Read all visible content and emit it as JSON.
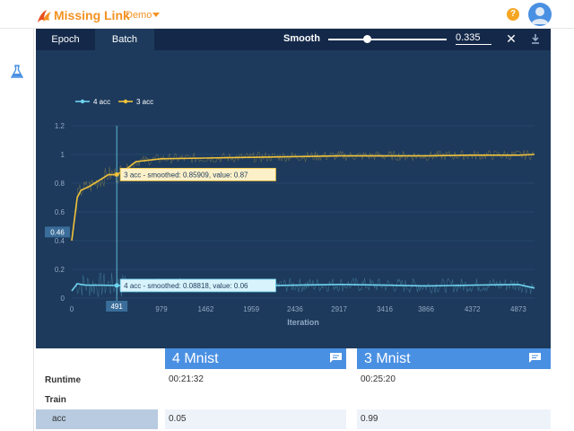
{
  "app": {
    "brand": "Missing Link",
    "project": "Demo",
    "help_glyph": "?"
  },
  "colors": {
    "brand_orange": "#f29222",
    "panel_bg": "#1d3a5c",
    "tab_bar_bg": "#14294a",
    "accent_blue": "#4a90e2",
    "series_4acc": "#6fd3ee",
    "series_3acc": "#f0c23a"
  },
  "icons": {
    "logo": "missing-link-logo",
    "flask": "flask-icon",
    "help": "help-icon",
    "avatar": "user-avatar-icon",
    "close": "close-icon",
    "download": "download-icon",
    "chat": "comment-icon"
  },
  "chart_panel": {
    "tabs": [
      {
        "label": "Epoch",
        "active": false
      },
      {
        "label": "Batch",
        "active": true
      }
    ],
    "smooth_label": "Smooth",
    "smooth_value": "0.335",
    "smooth_fraction": 0.335,
    "close_glyph": "✕"
  },
  "chart_data": {
    "type": "line",
    "xlabel": "Iteration",
    "ylabel": "",
    "ylim": [
      0,
      1.2
    ],
    "xlim": [
      0,
      5050
    ],
    "x_ticks": [
      "0",
      "491",
      "979",
      "1462",
      "1959",
      "2436",
      "2917",
      "3416",
      "3866",
      "4372",
      "4873"
    ],
    "y_ticks": [
      "0",
      "0.2",
      "0.4",
      "0.6",
      "0.8",
      "1",
      "1.2"
    ],
    "grid": true,
    "legend_position": "top-left",
    "series": [
      {
        "name": "4 acc",
        "color": "#6fd3ee",
        "x": [
          0,
          60,
          150,
          300,
          491,
          700,
          979,
          1462,
          1959,
          2436,
          2917,
          3416,
          3866,
          4372,
          4873,
          5050
        ],
        "y": [
          0.05,
          0.1,
          0.09,
          0.09,
          0.088,
          0.085,
          0.09,
          0.095,
          0.085,
          0.09,
          0.095,
          0.09,
          0.085,
          0.09,
          0.095,
          0.07
        ]
      },
      {
        "name": "3 acc",
        "color": "#f0c23a",
        "x": [
          0,
          60,
          100,
          200,
          300,
          400,
          491,
          600,
          700,
          979,
          1462,
          1959,
          2436,
          2917,
          3416,
          3866,
          4372,
          4873,
          5050
        ],
        "y": [
          0.4,
          0.7,
          0.75,
          0.78,
          0.82,
          0.86,
          0.859,
          0.9,
          0.95,
          0.97,
          0.975,
          0.98,
          0.985,
          0.99,
          0.99,
          0.99,
          0.995,
          0.995,
          1.0
        ]
      }
    ],
    "hover_x": 491,
    "hover_x_label": "491",
    "hover_y_label": "0.46",
    "tooltips": [
      {
        "series": "3 acc",
        "text": "3 acc - smoothed: 0.85909, value: 0.87",
        "y": 0.86
      },
      {
        "series": "4 acc",
        "text": "4 acc - smoothed: 0.08818, value: 0.06",
        "y": 0.088
      }
    ]
  },
  "comparison": {
    "experiments": [
      {
        "name": "4 Mnist",
        "runtime": "00:21:32",
        "acc": "0.05"
      },
      {
        "name": "3 Mnist",
        "runtime": "00:25:20",
        "acc": "0.99"
      }
    ],
    "rows": {
      "runtime": "Runtime",
      "train": "Train",
      "acc": "acc"
    }
  }
}
